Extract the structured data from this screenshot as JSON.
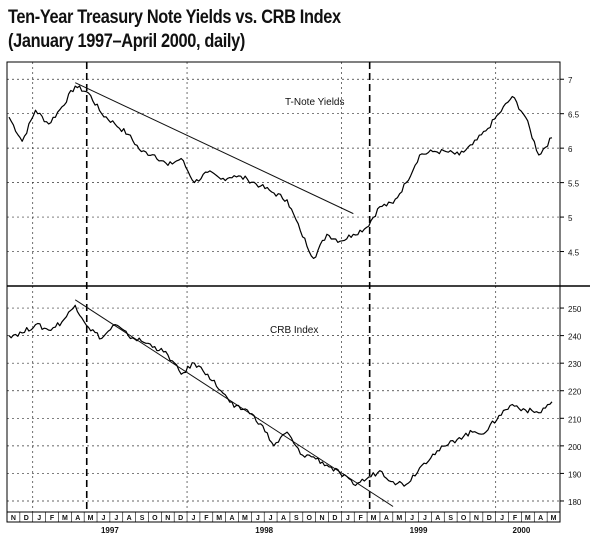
{
  "title": "Ten-Year Treasury Note Yields vs. CRB Index",
  "subtitle": "(January 1997–April 2000, daily)",
  "chart_data": [
    {
      "type": "line",
      "title": "T-Note Yields",
      "ylim": [
        4.0,
        7.25
      ],
      "yticks": [
        4.5,
        5,
        5.5,
        6,
        6.5,
        7
      ],
      "ytick_labels": [
        "4.5",
        "5",
        "5.5",
        "6",
        "6.5",
        "7"
      ],
      "grid": true,
      "series": [
        {
          "x": [
            0,
            1,
            2,
            3,
            4,
            5,
            6,
            7,
            8,
            9,
            10,
            11,
            12,
            13,
            14,
            15,
            16,
            17,
            18,
            19,
            20,
            21,
            22,
            23,
            24,
            25,
            26,
            27,
            28,
            29,
            30,
            31,
            32,
            33,
            34,
            35,
            36,
            37,
            38,
            39,
            40,
            41
          ],
          "values": [
            6.45,
            6.1,
            6.55,
            6.35,
            6.6,
            6.9,
            6.8,
            6.5,
            6.35,
            6.2,
            5.95,
            5.9,
            5.75,
            5.85,
            5.5,
            5.65,
            5.55,
            5.6,
            5.55,
            5.45,
            5.35,
            5.25,
            4.8,
            4.4,
            4.75,
            4.65,
            4.75,
            4.85,
            5.15,
            5.2,
            5.5,
            5.9,
            5.95,
            5.95,
            5.9,
            6.05,
            6.25,
            6.5,
            6.75,
            6.45,
            5.9,
            6.15
          ]
        }
      ],
      "trendline": {
        "from": [
          5,
          6.95
        ],
        "to": [
          26,
          5.05
        ]
      }
    },
    {
      "type": "line",
      "title": "CRB Index",
      "ylim": [
        176,
        258
      ],
      "yticks": [
        180,
        190,
        200,
        210,
        220,
        230,
        240,
        250
      ],
      "ytick_labels": [
        "180",
        "190",
        "200",
        "210",
        "220",
        "230",
        "240",
        "250"
      ],
      "grid": true,
      "series": [
        {
          "x": [
            0,
            1,
            2,
            3,
            4,
            5,
            6,
            7,
            8,
            9,
            10,
            11,
            12,
            13,
            14,
            15,
            16,
            17,
            18,
            19,
            20,
            21,
            22,
            23,
            24,
            25,
            26,
            27,
            28,
            29,
            30,
            31,
            32,
            33,
            34,
            35,
            36,
            37,
            38,
            39,
            40,
            41
          ],
          "values": [
            240,
            241,
            244,
            242,
            245,
            251,
            243,
            239,
            244,
            240,
            238,
            236,
            233,
            226,
            230,
            226,
            220,
            214,
            213,
            208,
            200,
            205,
            197,
            196,
            193,
            190,
            186,
            188,
            191,
            187,
            186,
            192,
            197,
            200,
            203,
            205,
            205,
            211,
            215,
            213,
            212,
            216
          ],
          "extra_points_note": ""
        }
      ],
      "trendline": {
        "from": [
          5,
          253
        ],
        "to": [
          29,
          178
        ]
      }
    }
  ],
  "x_axis": {
    "month_letters": [
      "N",
      "D",
      "J",
      "F",
      "M",
      "A",
      "M",
      "J",
      "J",
      "A",
      "S",
      "O",
      "N",
      "D",
      "J",
      "F",
      "M",
      "A",
      "M",
      "J",
      "J",
      "A",
      "S",
      "O",
      "N",
      "D",
      "J",
      "F",
      "M",
      "A",
      "M",
      "J",
      "J",
      "A",
      "S",
      "O",
      "N",
      "D",
      "J",
      "F",
      "M",
      "A",
      "M"
    ],
    "year_labels": [
      {
        "label": "1997",
        "month_index": 8
      },
      {
        "label": "1998",
        "month_index": 20
      },
      {
        "label": "1999",
        "month_index": 32
      },
      {
        "label": "2000",
        "month_index": 40
      }
    ],
    "vertical_dashed_markers_month_index": [
      6,
      28
    ]
  }
}
